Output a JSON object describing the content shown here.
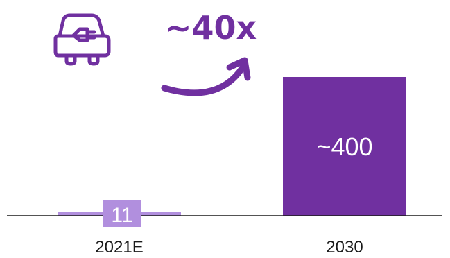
{
  "chart_data": {
    "type": "bar",
    "categories": [
      "2021E",
      "2030"
    ],
    "values": [
      11,
      400
    ],
    "value_labels": [
      "11",
      "~400"
    ],
    "title": "",
    "xlabel": "",
    "ylabel": "",
    "ylim": [
      0,
      400
    ],
    "annotation": "~40x"
  },
  "icons": {
    "car": "electric-car-icon",
    "arrow": "growth-arrow-icon"
  },
  "colors": {
    "bar_dark": "#7030A0",
    "bar_light": "#B18FDE",
    "accent": "#7030A0",
    "axis": "#1a1a1a"
  }
}
